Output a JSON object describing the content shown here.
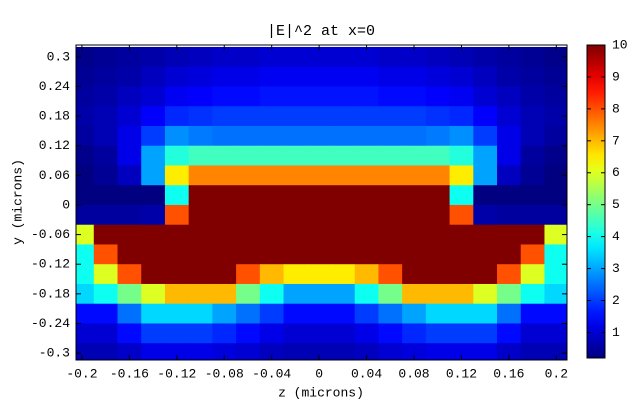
{
  "chart_data": {
    "type": "heatmap",
    "title": "|E|^2 at x=0",
    "x_label": "z (microns)",
    "y_label": "y (microns)",
    "colormap": "jet",
    "x": [
      -0.2,
      -0.18,
      -0.16,
      -0.14,
      -0.12,
      -0.1,
      -0.08,
      -0.06,
      -0.04,
      -0.02,
      0,
      0.02,
      0.04,
      0.06,
      0.08,
      0.1,
      0.12,
      0.14,
      0.16,
      0.18,
      0.2
    ],
    "y": [
      0.3,
      0.26,
      0.22,
      0.18,
      0.14,
      0.1,
      0.06,
      0.02,
      -0.02,
      -0.06,
      -0.1,
      -0.14,
      -0.18,
      -0.22,
      -0.26,
      -0.3
    ],
    "z": [
      [
        0.3,
        0.4,
        0.5,
        0.6,
        0.7,
        0.8,
        0.9,
        0.9,
        1.0,
        1.0,
        1.0,
        1.0,
        1.0,
        0.9,
        0.9,
        0.8,
        0.7,
        0.6,
        0.5,
        0.4,
        0.3
      ],
      [
        0.4,
        0.5,
        0.6,
        0.8,
        1.0,
        1.1,
        1.2,
        1.2,
        1.3,
        1.3,
        1.3,
        1.3,
        1.3,
        1.2,
        1.2,
        1.1,
        1.0,
        0.8,
        0.6,
        0.5,
        0.4
      ],
      [
        0.5,
        0.6,
        0.8,
        1.0,
        1.3,
        1.4,
        1.5,
        1.5,
        1.6,
        1.6,
        1.6,
        1.6,
        1.6,
        1.5,
        1.5,
        1.4,
        1.3,
        1.0,
        0.8,
        0.6,
        0.5
      ],
      [
        0.6,
        0.7,
        1.0,
        1.4,
        1.8,
        1.9,
        2.0,
        2.0,
        2.0,
        2.0,
        2.0,
        2.0,
        2.0,
        2.0,
        2.0,
        1.9,
        1.8,
        1.4,
        1.0,
        0.7,
        0.6
      ],
      [
        0.5,
        0.7,
        1.2,
        2.0,
        2.8,
        2.6,
        2.5,
        2.5,
        2.5,
        2.5,
        2.5,
        2.5,
        2.5,
        2.5,
        2.5,
        2.6,
        2.8,
        2.0,
        1.2,
        0.7,
        0.5
      ],
      [
        0.3,
        0.5,
        1.2,
        3.0,
        4.2,
        4.5,
        4.5,
        4.5,
        4.5,
        4.5,
        4.5,
        4.5,
        4.5,
        4.5,
        4.5,
        4.5,
        4.2,
        3.0,
        1.2,
        0.5,
        0.3
      ],
      [
        0.2,
        0.4,
        0.8,
        3.0,
        6.5,
        7.5,
        7.5,
        7.5,
        7.5,
        7.5,
        7.5,
        7.5,
        7.5,
        7.5,
        7.5,
        7.5,
        6.5,
        3.0,
        0.8,
        0.4,
        0.2
      ],
      [
        0.1,
        0.1,
        0.1,
        0.2,
        4.0,
        10,
        10,
        10,
        10,
        10,
        10,
        10,
        10,
        10,
        10,
        10,
        4.0,
        0.2,
        0.1,
        0.1,
        0.1
      ],
      [
        0.5,
        0.5,
        0.5,
        0.6,
        8.0,
        10,
        10,
        10,
        10,
        10,
        10,
        10,
        10,
        10,
        10,
        10,
        8.0,
        0.6,
        0.5,
        0.5,
        0.5
      ],
      [
        6.0,
        10,
        10,
        10,
        10,
        10,
        10,
        10,
        10,
        10,
        10,
        10,
        10,
        10,
        10,
        10,
        10,
        10,
        10,
        10,
        6.0
      ],
      [
        4.0,
        8.0,
        10,
        10,
        10,
        10,
        10,
        10,
        10,
        10,
        10,
        10,
        10,
        10,
        10,
        10,
        10,
        10,
        10,
        8.0,
        4.0
      ],
      [
        4.0,
        6.0,
        8.0,
        10,
        10,
        10,
        10,
        8.0,
        7.0,
        6.5,
        6.5,
        6.5,
        7.0,
        8.0,
        10,
        10,
        10,
        10,
        8.0,
        6.0,
        4.0
      ],
      [
        3.5,
        4.0,
        5.0,
        6.0,
        7.0,
        7.0,
        7.0,
        5.0,
        4.0,
        3.0,
        3.0,
        3.0,
        4.0,
        5.0,
        7.0,
        7.0,
        7.0,
        6.0,
        5.0,
        4.0,
        3.5
      ],
      [
        1.5,
        1.5,
        2.5,
        3.5,
        3.5,
        3.5,
        3.0,
        2.5,
        2.0,
        1.5,
        1.5,
        1.5,
        2.0,
        2.5,
        3.0,
        3.5,
        3.5,
        3.5,
        2.5,
        1.5,
        1.5
      ],
      [
        1.0,
        1.0,
        1.5,
        2.0,
        2.0,
        2.0,
        1.8,
        1.5,
        1.2,
        1.0,
        1.0,
        1.0,
        1.2,
        1.5,
        1.8,
        2.0,
        2.0,
        2.0,
        1.5,
        1.0,
        1.0
      ],
      [
        0.7,
        0.7,
        0.9,
        1.2,
        1.2,
        1.2,
        1.1,
        1.0,
        0.8,
        0.7,
        0.7,
        0.7,
        0.8,
        1.0,
        1.1,
        1.2,
        1.2,
        1.2,
        0.9,
        0.7,
        0.7
      ]
    ],
    "xlim": [
      -0.205,
      0.209
    ],
    "ylim": [
      -0.314,
      0.324
    ],
    "xticks": [
      -0.2,
      -0.16,
      -0.12,
      -0.08,
      -0.04,
      0,
      0.04,
      0.08,
      0.12,
      0.16,
      0.2
    ],
    "yticks": [
      0.3,
      0.24,
      0.18,
      0.12,
      0.06,
      0,
      -0.06,
      -0.12,
      -0.18,
      -0.24,
      -0.3
    ],
    "clim": [
      0.2,
      10
    ],
    "cticks": [
      1,
      2,
      3,
      4,
      5,
      6,
      7,
      8,
      9,
      10
    ]
  }
}
